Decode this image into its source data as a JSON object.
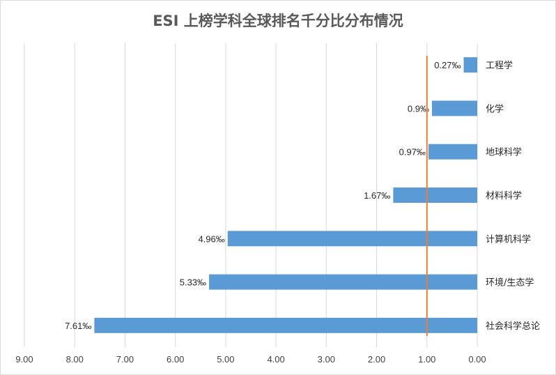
{
  "chart_data": {
    "type": "bar",
    "orientation": "horizontal",
    "x_direction": "reversed",
    "title": "ESI 上榜学科全球排名千分比分布情况",
    "categories": [
      "工程学",
      "化学",
      "地球科学",
      "材料科学",
      "计算机科学",
      "环境/生态学",
      "社会科学总论"
    ],
    "values": [
      0.27,
      0.9,
      0.97,
      1.67,
      4.96,
      5.33,
      7.61
    ],
    "data_labels": [
      "0.27‰",
      "0.9‰",
      "0.97‰",
      "1.67‰",
      "4.96‰",
      "5.33‰",
      "7.61‰"
    ],
    "xlim": [
      0,
      9
    ],
    "x_ticks": [
      "9.00",
      "8.00",
      "7.00",
      "6.00",
      "5.00",
      "4.00",
      "3.00",
      "2.00",
      "1.00",
      "0.00"
    ],
    "reference_line": {
      "value": 1.0,
      "color": "#ed7d31"
    },
    "bar_color": "#5b9bd5",
    "gridline_color": "#d9d9d9",
    "grid": true,
    "legend": "none"
  }
}
